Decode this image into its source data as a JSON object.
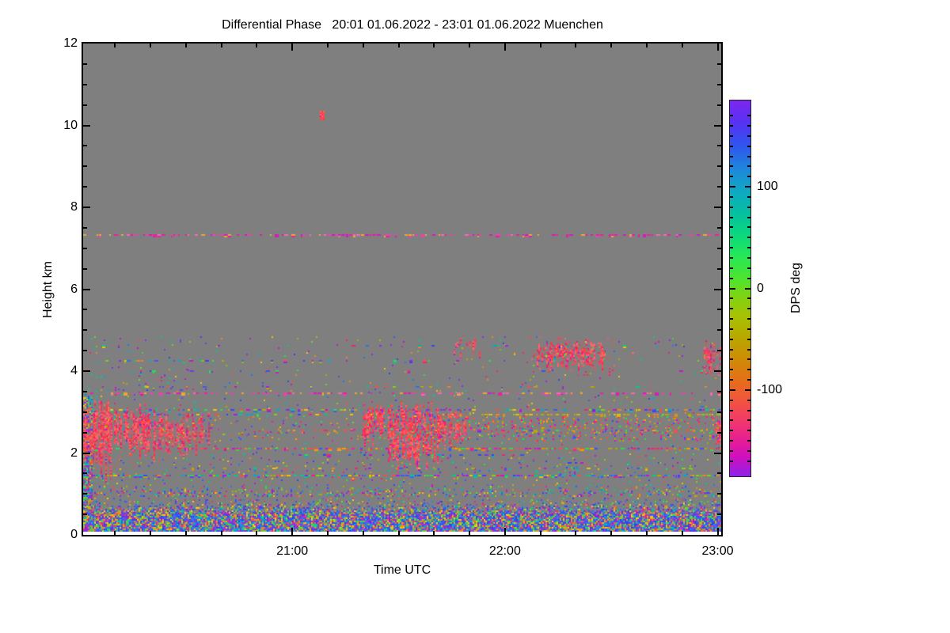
{
  "chart_data": {
    "type": "heatmap",
    "title": "Differential Phase   20:01 01.06.2022 - 23:01 01.06.2022 Muenchen",
    "xlabel": "Time UTC",
    "ylabel": "Height km",
    "plot_bg": "#7f7f7f",
    "x_axis": {
      "start_label": "20:01",
      "end_label": "23:01",
      "range_minutes": [
        0,
        180
      ],
      "major_ticks": [
        {
          "label": "21:00",
          "t": 59
        },
        {
          "label": "22:00",
          "t": 119
        },
        {
          "label": "23:00",
          "t": 179
        }
      ],
      "minor_tick_start_min": 9,
      "minor_tick_every_min": 10
    },
    "y_axis": {
      "range_km": [
        0,
        12
      ],
      "major_ticks": [
        {
          "label": "0",
          "km": 0
        },
        {
          "label": "2",
          "km": 2
        },
        {
          "label": "4",
          "km": 4
        },
        {
          "label": "6",
          "km": 6
        },
        {
          "label": "8",
          "km": 8
        },
        {
          "label": "10",
          "km": 10
        },
        {
          "label": "12",
          "km": 12
        }
      ],
      "minor_tick_every_km": 0.5
    },
    "colorbar": {
      "label": "DPS deg",
      "range": [
        -185,
        185
      ],
      "major_ticks": [
        {
          "label": "100",
          "value": 100
        },
        {
          "label": "0",
          "value": 0
        },
        {
          "label": "-100",
          "value": -100
        }
      ],
      "minor_tick_every": 10,
      "gradient": [
        {
          "pos": 0,
          "color": "#7d26f0"
        },
        {
          "pos": 6,
          "color": "#5632f2"
        },
        {
          "pos": 12,
          "color": "#2f55ee"
        },
        {
          "pos": 18,
          "color": "#1f86dc"
        },
        {
          "pos": 24,
          "color": "#0fa8c4"
        },
        {
          "pos": 30,
          "color": "#06bfa0"
        },
        {
          "pos": 36,
          "color": "#0cd97c"
        },
        {
          "pos": 42,
          "color": "#2ae852"
        },
        {
          "pos": 48,
          "color": "#52e32c"
        },
        {
          "pos": 52,
          "color": "#7ed414"
        },
        {
          "pos": 57,
          "color": "#a4c304"
        },
        {
          "pos": 63,
          "color": "#b8a800"
        },
        {
          "pos": 69,
          "color": "#cf8b06"
        },
        {
          "pos": 75,
          "color": "#e66c1c"
        },
        {
          "pos": 80,
          "color": "#f2533f"
        },
        {
          "pos": 85,
          "color": "#f23a68"
        },
        {
          "pos": 90,
          "color": "#e81f90"
        },
        {
          "pos": 95,
          "color": "#cf0fc0"
        },
        {
          "pos": 100,
          "color": "#8d23e8"
        }
      ]
    },
    "palettes": {
      "vivid": [
        "#7733ee",
        "#4455f0",
        "#2277e8",
        "#00aacc",
        "#00cc88",
        "#2ade4e",
        "#7ed414",
        "#b8a800",
        "#e68822",
        "#f25044",
        "#ee2277",
        "#cc11cc",
        "#9922ee",
        "#f0c400",
        "#3344ff",
        "#00c8a0"
      ],
      "blue_heavy": [
        "#3355ff",
        "#2a44ee",
        "#4466ff",
        "#1f86dc",
        "#00a0e8",
        "#7733ee",
        "#8822dd",
        "#f08822",
        "#f0a800",
        "#2ade4e",
        "#00cc99",
        "#ee3366",
        "#cc22cc",
        "#f0d400",
        "#f06633",
        "#7ed414",
        "#2f55ee",
        "#4455f0"
      ],
      "red": [
        "#f74c55",
        "#ff5566",
        "#f23a50",
        "#ee2a66",
        "#ff6677",
        "#f76a5a",
        "#ee3388",
        "#f2533f",
        "#fa4444",
        "#e81f70"
      ],
      "pink_line": [
        "#e820a0",
        "#f040b0",
        "#d81abc",
        "#f46ab4",
        "#f0a830"
      ],
      "cool": [
        "#3344ee",
        "#7733ee",
        "#2f55ee",
        "#00aacc",
        "#cc11cc",
        "#ee2277",
        "#2ade4e"
      ],
      "warm_mix": [
        "#f74c55",
        "#ee2a66",
        "#e820a0",
        "#f08822",
        "#cc11cc",
        "#f2533f",
        "#b8a800",
        "#2ade4e",
        "#3355ff",
        "#f0a800"
      ],
      "yellow_line": [
        "#d4b400",
        "#c0a800",
        "#e0c010",
        "#b8a800",
        "#f08822",
        "#7ed414"
      ]
    },
    "features": [
      {
        "kind": "noise",
        "t": [
          0,
          180
        ],
        "h": [
          0.07,
          0.55
        ],
        "density": 0.97,
        "palette": "blue_heavy"
      },
      {
        "kind": "noise",
        "t": [
          0,
          180
        ],
        "h": [
          0.55,
          0.95
        ],
        "density": 0.8,
        "fade": 1.3,
        "palette": "blue_heavy"
      },
      {
        "kind": "noise",
        "t": [
          0,
          180
        ],
        "h": [
          0.95,
          1.35
        ],
        "density": 0.3,
        "fade": 1.2,
        "palette": "vivid"
      },
      {
        "kind": "noise",
        "t": [
          0,
          180
        ],
        "h": [
          1.35,
          1.9
        ],
        "density": 0.05,
        "palette": "vivid"
      },
      {
        "kind": "noise",
        "t": [
          0,
          180
        ],
        "h": [
          1.9,
          4.85
        ],
        "density": 0.015,
        "palette": "vivid"
      },
      {
        "kind": "noise",
        "t": [
          0,
          2.5
        ],
        "h": [
          0,
          3.4
        ],
        "density": 0.8,
        "palette": "vivid"
      },
      {
        "kind": "noise",
        "t": [
          0,
          30
        ],
        "h": [
          3.3,
          4.1
        ],
        "density": 0.04,
        "palette": "vivid"
      },
      {
        "kind": "noise",
        "t": [
          20,
          95
        ],
        "h": [
          2.3,
          2.9
        ],
        "density": 0.05,
        "palette": "warm_mix"
      },
      {
        "kind": "noise",
        "t": [
          95,
          180
        ],
        "h": [
          2.3,
          2.9
        ],
        "density": 0.12,
        "palette": "warm_mix"
      },
      {
        "kind": "noise",
        "t": [
          126,
          150
        ],
        "h": [
          3.9,
          4.85
        ],
        "density": 0.06,
        "palette": "red"
      },
      {
        "kind": "line",
        "h": 7.32,
        "t": [
          0,
          180
        ],
        "density": 0.5,
        "palette": "pink_line"
      },
      {
        "kind": "line",
        "h": 4.62,
        "t": [
          0,
          180
        ],
        "density": 0.08,
        "palette": "vivid"
      },
      {
        "kind": "line",
        "h": 4.25,
        "t": [
          5,
          40
        ],
        "density": 0.5,
        "palette": "vivid"
      },
      {
        "kind": "line",
        "h": 4.25,
        "t": [
          40,
          130
        ],
        "density": 0.1,
        "palette": "vivid"
      },
      {
        "kind": "line",
        "h": 4.45,
        "t": [
          120,
          180
        ],
        "density": 0.15,
        "palette": "red"
      },
      {
        "kind": "line",
        "h": 4.0,
        "t": [
          0,
          180
        ],
        "density": 0.1,
        "palette": "cool"
      },
      {
        "kind": "line",
        "h": 3.62,
        "t": [
          0,
          180
        ],
        "density": 0.1,
        "palette": "vivid"
      },
      {
        "kind": "line",
        "h": 3.45,
        "t": [
          0,
          180
        ],
        "density": 0.35,
        "palette": "pink_line"
      },
      {
        "kind": "line",
        "h": 3.05,
        "t": [
          0,
          180
        ],
        "density": 0.5,
        "palette": "vivid"
      },
      {
        "kind": "line",
        "h": 2.93,
        "t": [
          100,
          180
        ],
        "density": 0.45,
        "palette": "yellow_line"
      },
      {
        "kind": "line",
        "h": 2.93,
        "t": [
          0,
          100
        ],
        "density": 0.3,
        "palette": "vivid"
      },
      {
        "kind": "line",
        "h": 2.55,
        "t": [
          55,
          180
        ],
        "density": 0.3,
        "palette": "warm_mix"
      },
      {
        "kind": "line",
        "h": 2.1,
        "t": [
          0,
          180
        ],
        "density": 0.55,
        "palette": "warm_mix"
      },
      {
        "kind": "line",
        "h": 1.95,
        "t": [
          60,
          125
        ],
        "density": 0.25,
        "palette": "cool"
      },
      {
        "kind": "line",
        "h": 1.75,
        "t": [
          130,
          180
        ],
        "density": 0.1,
        "palette": "cool"
      },
      {
        "kind": "line",
        "h": 1.62,
        "t": [
          0,
          180
        ],
        "density": 0.12,
        "palette": "vivid"
      },
      {
        "kind": "line",
        "h": 1.45,
        "t": [
          0,
          180
        ],
        "density": 0.7,
        "palette": "vivid"
      },
      {
        "kind": "blob",
        "t": [
          0,
          8
        ],
        "h": [
          1.5,
          3.35
        ],
        "density": 0.85,
        "palette": "red"
      },
      {
        "kind": "blob",
        "t": [
          3,
          20
        ],
        "h": [
          1.9,
          3.3
        ],
        "density": 0.55,
        "palette": "red"
      },
      {
        "kind": "blob",
        "t": [
          12,
          36
        ],
        "h": [
          2.0,
          3.05
        ],
        "density": 0.4,
        "palette": "red"
      },
      {
        "kind": "blob",
        "t": [
          78,
          85
        ],
        "h": [
          2.2,
          3.25
        ],
        "density": 0.55,
        "palette": "red"
      },
      {
        "kind": "blob",
        "t": [
          86,
          101
        ],
        "h": [
          1.7,
          3.3
        ],
        "density": 0.7,
        "palette": "red"
      },
      {
        "kind": "blob",
        "t": [
          100,
          108
        ],
        "h": [
          2.1,
          3.15
        ],
        "density": 0.45,
        "palette": "red"
      },
      {
        "kind": "blob",
        "t": [
          104,
          112
        ],
        "h": [
          4.3,
          5.0
        ],
        "density": 0.15,
        "palette": "red"
      },
      {
        "kind": "blob",
        "t": [
          128,
          147
        ],
        "h": [
          4.1,
          4.75
        ],
        "density": 0.65,
        "palette": "red"
      },
      {
        "kind": "blob",
        "t": [
          175,
          180
        ],
        "h": [
          3.9,
          4.8
        ],
        "density": 0.45,
        "palette": "red"
      },
      {
        "kind": "blob",
        "t": [
          178.5,
          180
        ],
        "h": [
          1.9,
          3.1
        ],
        "density": 0.5,
        "palette": "red"
      },
      {
        "kind": "speck",
        "t": [
          66.8,
          67.8
        ],
        "h": [
          10.15,
          10.35
        ],
        "density": 1,
        "palette": "red"
      },
      {
        "kind": "rect",
        "t": [
          0,
          180
        ],
        "h": [
          0,
          0.07
        ],
        "color": "#ffffff"
      }
    ]
  }
}
